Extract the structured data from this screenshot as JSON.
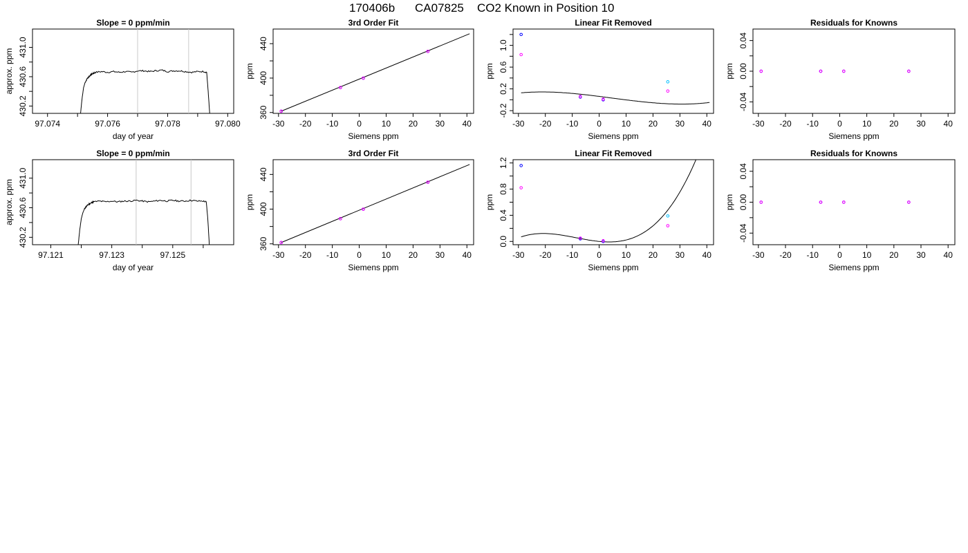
{
  "header": {
    "run_id": "170406b",
    "instrument": "CA07825",
    "position_label": "CO2 Known in Position  10"
  },
  "chart_data": [
    {
      "type": "line",
      "title": "Slope =  0  ppm/min",
      "xlabel": "day of year",
      "ylabel": "approx. ppm",
      "xlim": [
        97.0735,
        97.0802
      ],
      "ylim": [
        430.1,
        431.25
      ],
      "xticks": [
        97.074,
        97.075,
        97.076,
        97.077,
        97.078,
        97.079,
        97.08
      ],
      "xtick_labels": [
        "97.074",
        "",
        "97.076",
        "",
        "97.078",
        "",
        "97.080"
      ],
      "yticks": [
        430.2,
        430.4,
        430.6,
        430.8,
        431.0
      ],
      "ytick_labels": [
        "430.2",
        "",
        "430.6",
        "",
        "431.0"
      ],
      "vlines": [
        97.077,
        97.0787
      ],
      "trace": {
        "x_start": 97.0751,
        "rise_to": 97.0756,
        "x_end": 97.0794,
        "plateau": 430.66
      },
      "series": [
        {
          "x": [
            97.0751,
            97.07515,
            97.0752,
            97.07525,
            97.0753,
            97.07535,
            97.0754,
            97.07545,
            97.0755,
            97.07555,
            97.0756,
            97.0758,
            97.076,
            97.0762,
            97.0764,
            97.0766,
            97.0768,
            97.077,
            97.0772,
            97.0774,
            97.0776,
            97.0778,
            97.078,
            97.0782,
            97.0784,
            97.0786,
            97.0788,
            97.079,
            97.0792,
            97.0793,
            97.07935,
            97.0794
          ],
          "values": [
            430.1,
            430.3,
            430.45,
            430.52,
            430.56,
            430.59,
            430.61,
            430.63,
            430.64,
            430.65,
            430.66,
            430.67,
            430.66,
            430.67,
            430.66,
            430.67,
            430.66,
            430.68,
            430.68,
            430.67,
            430.68,
            430.69,
            430.67,
            430.68,
            430.68,
            430.67,
            430.66,
            430.67,
            430.67,
            430.66,
            430.4,
            430.1
          ]
        }
      ]
    },
    {
      "type": "scatter",
      "title": "3rd Order Fit",
      "xlabel": "Siemens ppm",
      "ylabel": "ppm",
      "xlim": [
        -32,
        42.5
      ],
      "ylim": [
        359,
        457
      ],
      "xticks": [
        -30,
        -20,
        -10,
        0,
        10,
        20,
        30,
        40
      ],
      "yticks": [
        360,
        380,
        400,
        420,
        440
      ],
      "ytick_labels": [
        "360",
        "",
        "400",
        "",
        "440"
      ],
      "curve": {
        "x": [
          -29,
          41
        ],
        "y": [
          361.5,
          451.5
        ]
      },
      "series": [
        {
          "color": "#0000ff",
          "x": [
            -29,
            -7,
            1.5,
            25.5
          ],
          "values": [
            361.5,
            389.0,
            399.9,
            431.0
          ]
        },
        {
          "color": "#ff00ff",
          "x": [
            -29,
            -7,
            1.5,
            25.5
          ],
          "values": [
            361.5,
            389.0,
            399.9,
            431.0
          ]
        }
      ]
    },
    {
      "type": "scatter",
      "title": "Linear Fit Removed",
      "xlabel": "Siemens ppm",
      "ylabel": "ppm",
      "xlim": [
        -32,
        42.5
      ],
      "ylim": [
        -0.25,
        1.3
      ],
      "xticks": [
        -30,
        -20,
        -10,
        0,
        10,
        20,
        30,
        40
      ],
      "yticks": [
        -0.2,
        0,
        0.2,
        0.4,
        0.6,
        0.8,
        1.0,
        1.2
      ],
      "ytick_labels": [
        "-0.2",
        "",
        "0.2",
        "",
        "0.6",
        "",
        "1.0",
        ""
      ],
      "poly": [
        0.062,
        -0.00625,
        -4.5e-05,
        3.2e-06
      ],
      "series": [
        {
          "color": "#0000ff",
          "x": [
            -29,
            -7,
            1.5
          ],
          "values": [
            1.2,
            0.05,
            0.0
          ]
        },
        {
          "color": "#ff00ff",
          "x": [
            -29,
            -7,
            1.5,
            25.5
          ],
          "values": [
            0.83,
            0.06,
            0.01,
            0.16
          ]
        },
        {
          "color": "#00bfff",
          "x": [
            25.5
          ],
          "values": [
            0.33
          ]
        }
      ]
    },
    {
      "type": "scatter",
      "title": "Residuals for Knowns",
      "xlabel": "Siemens ppm",
      "ylabel": "ppm",
      "xlim": [
        -32,
        42.5
      ],
      "ylim": [
        -0.055,
        0.055
      ],
      "xticks": [
        -30,
        -20,
        -10,
        0,
        10,
        20,
        30,
        40
      ],
      "yticks": [
        -0.04,
        -0.02,
        0,
        0.02,
        0.04
      ],
      "ytick_labels": [
        "-0.04",
        "",
        "0.00",
        "",
        "0.04"
      ],
      "series": [
        {
          "color": "#0000ff",
          "x": [
            -29,
            -7,
            1.5,
            25.5
          ],
          "values": [
            0,
            0,
            0,
            0
          ]
        },
        {
          "color": "#ff00ff",
          "x": [
            -29,
            -7,
            1.5,
            25.5
          ],
          "values": [
            0,
            0,
            0,
            0
          ]
        }
      ]
    },
    {
      "type": "line",
      "title": "Slope =  0  ppm/min",
      "xlabel": "day of year",
      "ylabel": "approx. ppm",
      "xlim": [
        97.1204,
        97.127
      ],
      "ylim": [
        430.1,
        431.25
      ],
      "xticks": [
        97.121,
        97.122,
        97.123,
        97.124,
        97.125,
        97.126
      ],
      "xtick_labels": [
        "97.121",
        "",
        "97.123",
        "",
        "97.125",
        ""
      ],
      "yticks": [
        430.2,
        430.4,
        430.6,
        430.8,
        431.0
      ],
      "ytick_labels": [
        "430.2",
        "",
        "430.6",
        "",
        "431.0"
      ],
      "vlines": [
        97.1238,
        97.1256
      ],
      "series": [
        {
          "x": [
            97.1219,
            97.12195,
            97.122,
            97.12205,
            97.1221,
            97.12215,
            97.1222,
            97.12225,
            97.1223,
            97.12235,
            97.1224,
            97.1226,
            97.1228,
            97.123,
            97.1232,
            97.1234,
            97.1236,
            97.1238,
            97.124,
            97.1242,
            97.1244,
            97.1246,
            97.1248,
            97.125,
            97.1252,
            97.1254,
            97.1256,
            97.1258,
            97.126,
            97.1261,
            97.12615,
            97.1262
          ],
          "values": [
            430.1,
            430.3,
            430.45,
            430.53,
            430.58,
            430.61,
            430.63,
            430.65,
            430.66,
            430.67,
            430.68,
            430.69,
            430.68,
            430.69,
            430.68,
            430.69,
            430.69,
            430.7,
            430.69,
            430.68,
            430.69,
            430.7,
            430.69,
            430.7,
            430.69,
            430.69,
            430.7,
            430.69,
            430.69,
            430.68,
            430.45,
            430.1
          ]
        }
      ]
    },
    {
      "type": "scatter",
      "title": "3rd Order Fit",
      "xlabel": "Siemens ppm",
      "ylabel": "ppm",
      "xlim": [
        -32,
        42.5
      ],
      "ylim": [
        359,
        457
      ],
      "xticks": [
        -30,
        -20,
        -10,
        0,
        10,
        20,
        30,
        40
      ],
      "yticks": [
        360,
        380,
        400,
        420,
        440
      ],
      "ytick_labels": [
        "360",
        "",
        "400",
        "",
        "440"
      ],
      "curve": {
        "x": [
          -29,
          41
        ],
        "y": [
          361.5,
          451.5
        ]
      },
      "series": [
        {
          "color": "#0000ff",
          "x": [
            -29,
            -7,
            1.5,
            25.5
          ],
          "values": [
            361.5,
            389.0,
            399.9,
            431.0
          ]
        },
        {
          "color": "#ff00ff",
          "x": [
            -29,
            -7,
            1.5,
            25.5
          ],
          "values": [
            361.5,
            389.0,
            399.9,
            431.0
          ]
        }
      ]
    },
    {
      "type": "scatter",
      "title": "Linear Fit Removed",
      "xlabel": "Siemens ppm",
      "ylabel": "ppm",
      "xlim": [
        -32,
        42.5
      ],
      "ylim": [
        -0.05,
        1.25
      ],
      "xticks": [
        -30,
        -20,
        -10,
        0,
        10,
        20,
        30,
        40
      ],
      "yticks": [
        0,
        0.2,
        0.4,
        0.6,
        0.8,
        1.0,
        1.2
      ],
      "ytick_labels": [
        "0.0",
        "",
        "0.4",
        "",
        "0.8",
        "",
        "1.2"
      ],
      "poly": [
        0.0,
        -0.00405,
        0.00045,
        1.75e-05
      ],
      "series": [
        {
          "color": "#0000ff",
          "x": [
            -29,
            -7,
            1.5
          ],
          "values": [
            1.16,
            0.04,
            0.0
          ]
        },
        {
          "color": "#ff00ff",
          "x": [
            -29,
            -7,
            1.5,
            25.5
          ],
          "values": [
            0.82,
            0.05,
            0.01,
            0.24
          ]
        },
        {
          "color": "#00bfff",
          "x": [
            25.5
          ],
          "values": [
            0.39
          ]
        }
      ]
    },
    {
      "type": "scatter",
      "title": "Residuals for Knowns",
      "xlabel": "Siemens ppm",
      "ylabel": "ppm",
      "xlim": [
        -32,
        42.5
      ],
      "ylim": [
        -0.055,
        0.055
      ],
      "xticks": [
        -30,
        -20,
        -10,
        0,
        10,
        20,
        30,
        40
      ],
      "yticks": [
        -0.04,
        -0.02,
        0,
        0.02,
        0.04
      ],
      "ytick_labels": [
        "-0.04",
        "",
        "0.00",
        "",
        "0.04"
      ],
      "series": [
        {
          "color": "#0000ff",
          "x": [
            -29,
            -7,
            1.5,
            25.5
          ],
          "values": [
            0,
            0,
            0,
            0
          ]
        },
        {
          "color": "#ff00ff",
          "x": [
            -29,
            -7,
            1.5,
            25.5
          ],
          "values": [
            0,
            0,
            0,
            0
          ]
        }
      ]
    }
  ]
}
